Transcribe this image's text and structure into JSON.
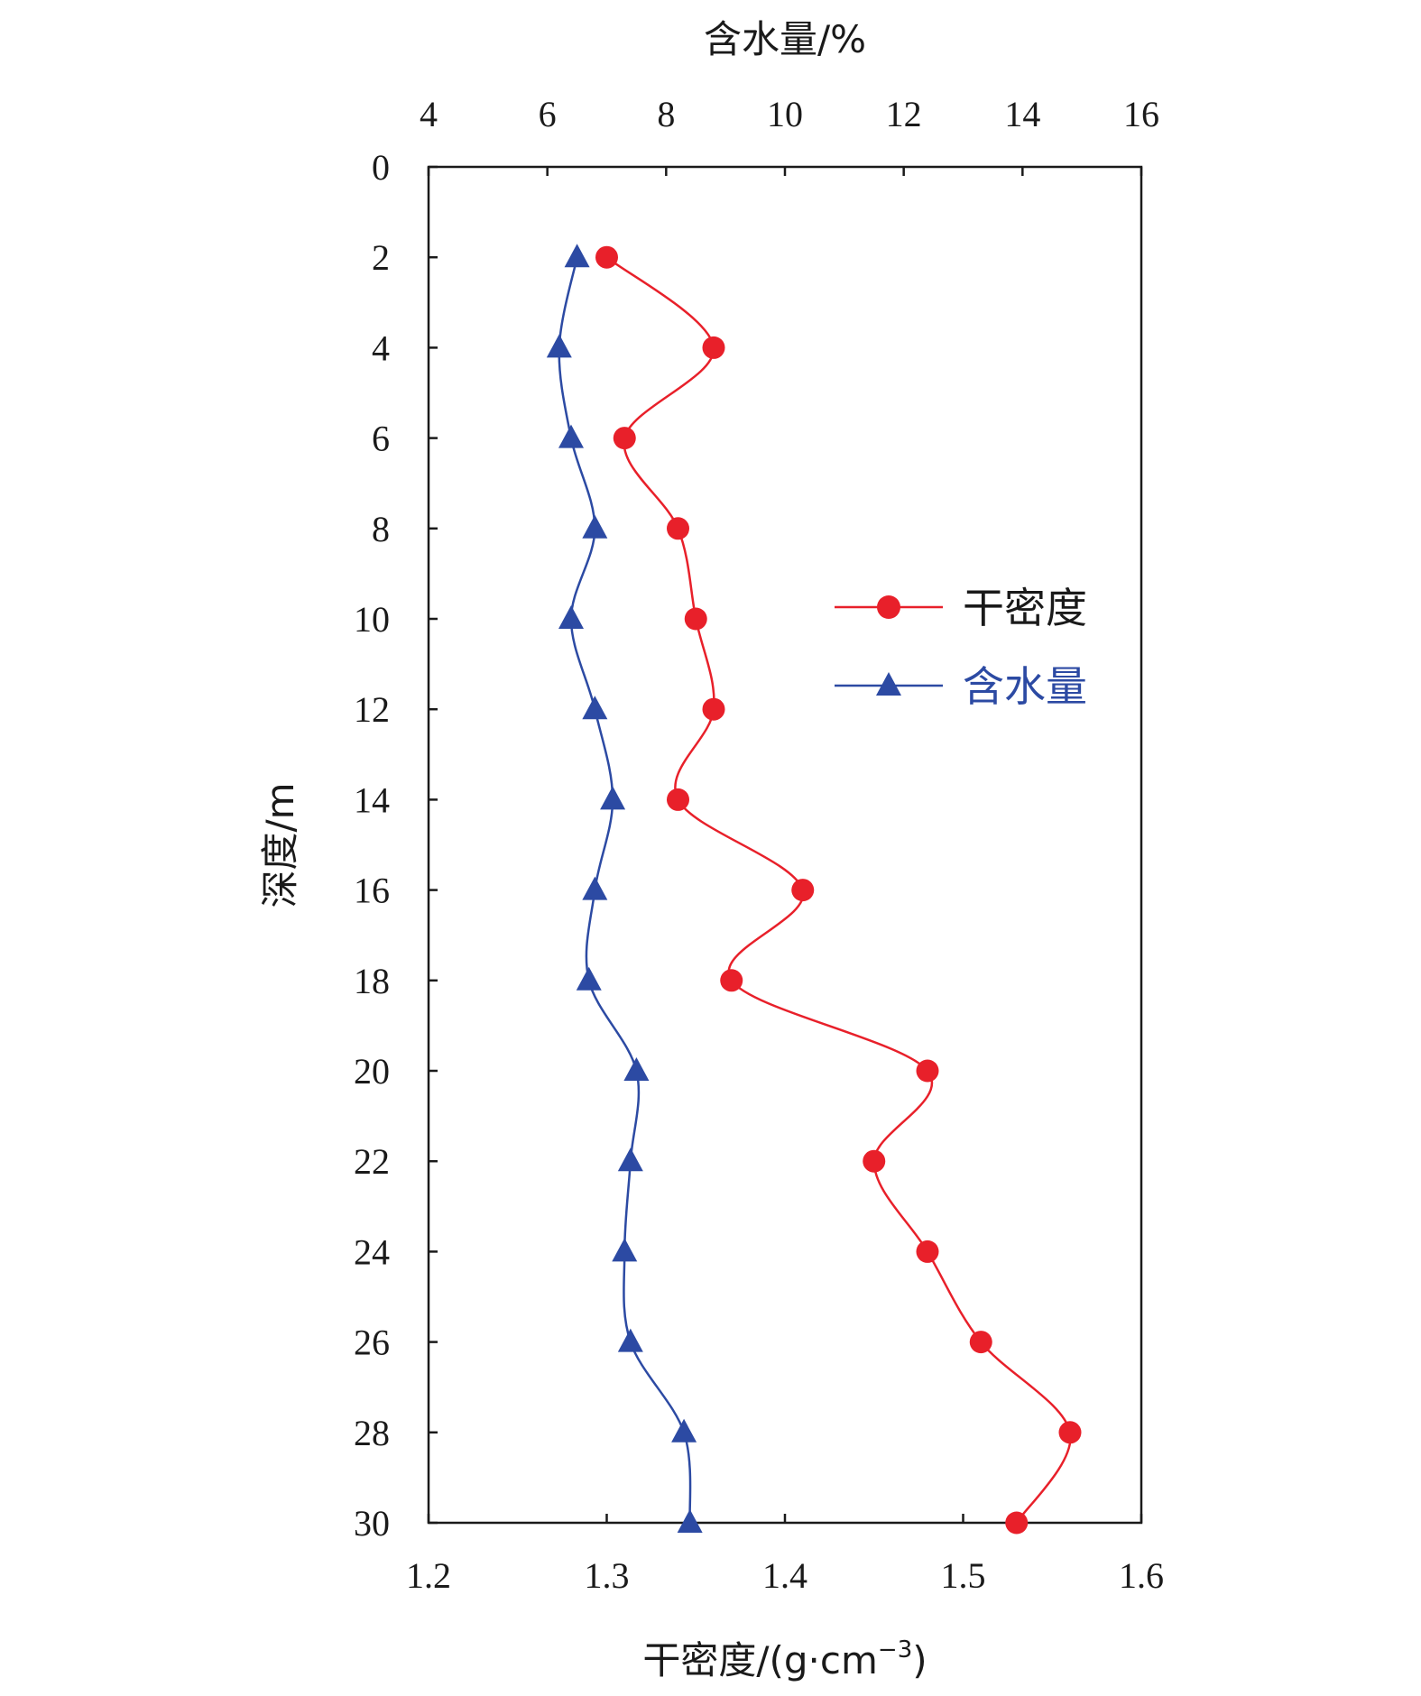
{
  "chart_data": {
    "type": "line",
    "orientation": "depth-profile",
    "y_axis": {
      "label": "深度/m",
      "range": [
        0,
        30
      ],
      "inverted": true,
      "ticks": [
        0,
        2,
        4,
        6,
        8,
        10,
        12,
        14,
        16,
        18,
        20,
        22,
        24,
        26,
        28,
        30
      ]
    },
    "x_bottom": {
      "label_main": "干密度/(g·cm",
      "label_sup": "−3",
      "label_close": ")",
      "range": [
        1.2,
        1.6
      ],
      "ticks": [
        "1.2",
        "1.3",
        "1.4",
        "1.5",
        "1.6"
      ]
    },
    "x_top": {
      "label": "含水量/%",
      "range": [
        4,
        16
      ],
      "ticks": [
        "4",
        "6",
        "8",
        "10",
        "12",
        "14",
        "16"
      ]
    },
    "legend": {
      "placement": "right-middle"
    },
    "series": [
      {
        "name": "干密度",
        "axis": "bottom",
        "color": "#e8202a",
        "marker": "circle",
        "points": [
          {
            "depth": 2,
            "value": 1.3
          },
          {
            "depth": 4,
            "value": 1.36
          },
          {
            "depth": 6,
            "value": 1.31
          },
          {
            "depth": 8,
            "value": 1.34
          },
          {
            "depth": 10,
            "value": 1.35
          },
          {
            "depth": 12,
            "value": 1.36
          },
          {
            "depth": 14,
            "value": 1.34
          },
          {
            "depth": 16,
            "value": 1.41
          },
          {
            "depth": 18,
            "value": 1.37
          },
          {
            "depth": 20,
            "value": 1.48
          },
          {
            "depth": 22,
            "value": 1.45
          },
          {
            "depth": 24,
            "value": 1.48
          },
          {
            "depth": 26,
            "value": 1.51
          },
          {
            "depth": 28,
            "value": 1.56
          },
          {
            "depth": 30,
            "value": 1.53
          }
        ]
      },
      {
        "name": "含水量",
        "axis": "top",
        "color": "#2c4aa3",
        "marker": "triangle",
        "points": [
          {
            "depth": 2,
            "value": 6.5
          },
          {
            "depth": 4,
            "value": 6.2
          },
          {
            "depth": 6,
            "value": 6.4
          },
          {
            "depth": 8,
            "value": 6.8
          },
          {
            "depth": 10,
            "value": 6.4
          },
          {
            "depth": 12,
            "value": 6.8
          },
          {
            "depth": 14,
            "value": 7.1
          },
          {
            "depth": 16,
            "value": 6.8
          },
          {
            "depth": 18,
            "value": 6.7
          },
          {
            "depth": 20,
            "value": 7.5
          },
          {
            "depth": 22,
            "value": 7.4
          },
          {
            "depth": 24,
            "value": 7.3
          },
          {
            "depth": 26,
            "value": 7.4
          },
          {
            "depth": 28,
            "value": 8.3
          },
          {
            "depth": 30,
            "value": 8.4
          }
        ]
      }
    ]
  }
}
